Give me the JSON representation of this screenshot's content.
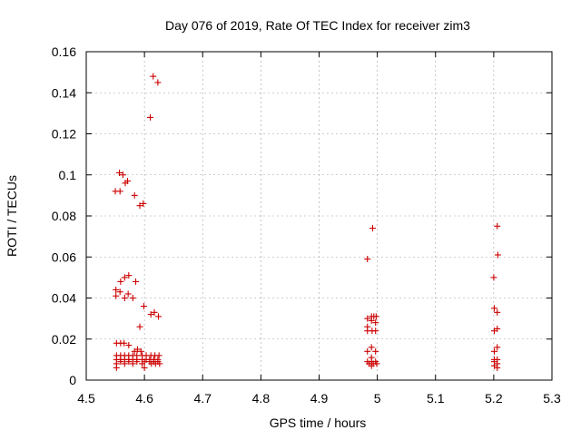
{
  "chart_data": {
    "type": "scatter",
    "title": "Day 076 of 2019, Rate Of TEC Index for receiver zim3",
    "xlabel": "GPS time / hours",
    "ylabel": "ROTI / TECUs",
    "xlim": [
      4.5,
      5.3
    ],
    "ylim": [
      0,
      0.16
    ],
    "xticks": [
      "4.5",
      "4.6",
      "4.7",
      "4.8",
      "4.9",
      "5",
      "5.1",
      "5.2",
      "5.3"
    ],
    "yticks": [
      "0",
      "0.02",
      "0.04",
      "0.06",
      "0.08",
      "0.1",
      "0.12",
      "0.14",
      "0.16"
    ],
    "grid": true,
    "marker": "+",
    "marker_color": "#cc0000",
    "series": [
      {
        "name": "ROTI",
        "points": [
          [
            4.615,
            0.148
          ],
          [
            4.623,
            0.145
          ],
          [
            4.61,
            0.128
          ],
          [
            4.557,
            0.101
          ],
          [
            4.563,
            0.1
          ],
          [
            4.571,
            0.097
          ],
          [
            4.567,
            0.096
          ],
          [
            4.55,
            0.092
          ],
          [
            4.558,
            0.092
          ],
          [
            4.583,
            0.09
          ],
          [
            4.598,
            0.086
          ],
          [
            4.592,
            0.085
          ],
          [
            4.573,
            0.051
          ],
          [
            4.566,
            0.05
          ],
          [
            4.559,
            0.048
          ],
          [
            4.585,
            0.048
          ],
          [
            4.551,
            0.044
          ],
          [
            4.558,
            0.043
          ],
          [
            4.572,
            0.042
          ],
          [
            4.551,
            0.041
          ],
          [
            4.566,
            0.04
          ],
          [
            4.58,
            0.04
          ],
          [
            4.599,
            0.036
          ],
          [
            4.617,
            0.033
          ],
          [
            4.611,
            0.032
          ],
          [
            4.624,
            0.031
          ],
          [
            4.592,
            0.026
          ],
          [
            4.552,
            0.018
          ],
          [
            4.559,
            0.018
          ],
          [
            4.565,
            0.018
          ],
          [
            4.573,
            0.017
          ],
          [
            4.588,
            0.015
          ],
          [
            4.583,
            0.014
          ],
          [
            4.594,
            0.014
          ],
          [
            4.552,
            0.012
          ],
          [
            4.559,
            0.012
          ],
          [
            4.566,
            0.012
          ],
          [
            4.573,
            0.012
          ],
          [
            4.58,
            0.012
          ],
          [
            4.587,
            0.012
          ],
          [
            4.596,
            0.012
          ],
          [
            4.603,
            0.012
          ],
          [
            4.611,
            0.012
          ],
          [
            4.618,
            0.012
          ],
          [
            4.625,
            0.012
          ],
          [
            4.552,
            0.01
          ],
          [
            4.559,
            0.01
          ],
          [
            4.566,
            0.01
          ],
          [
            4.573,
            0.01
          ],
          [
            4.58,
            0.01
          ],
          [
            4.587,
            0.01
          ],
          [
            4.596,
            0.01
          ],
          [
            4.603,
            0.01
          ],
          [
            4.609,
            0.01
          ],
          [
            4.616,
            0.01
          ],
          [
            4.623,
            0.01
          ],
          [
            4.559,
            0.009
          ],
          [
            4.573,
            0.009
          ],
          [
            4.587,
            0.009
          ],
          [
            4.6,
            0.009
          ],
          [
            4.609,
            0.009
          ],
          [
            4.616,
            0.009
          ],
          [
            4.623,
            0.009
          ],
          [
            4.552,
            0.008
          ],
          [
            4.566,
            0.008
          ],
          [
            4.58,
            0.008
          ],
          [
            4.596,
            0.008
          ],
          [
            4.612,
            0.008
          ],
          [
            4.619,
            0.008
          ],
          [
            4.626,
            0.008
          ],
          [
            4.552,
            0.006
          ],
          [
            4.6,
            0.006
          ],
          [
            4.992,
            0.074
          ],
          [
            4.983,
            0.059
          ],
          [
            4.994,
            0.031
          ],
          [
            4.99,
            0.031
          ],
          [
            4.998,
            0.031
          ],
          [
            4.983,
            0.03
          ],
          [
            4.99,
            0.029
          ],
          [
            4.997,
            0.028
          ],
          [
            4.983,
            0.026
          ],
          [
            4.983,
            0.024
          ],
          [
            4.991,
            0.024
          ],
          [
            4.997,
            0.024
          ],
          [
            4.99,
            0.016
          ],
          [
            4.983,
            0.014
          ],
          [
            4.997,
            0.014
          ],
          [
            4.99,
            0.011
          ],
          [
            4.983,
            0.009
          ],
          [
            4.997,
            0.009
          ],
          [
            4.99,
            0.009
          ],
          [
            4.986,
            0.008
          ],
          [
            4.993,
            0.008
          ],
          [
            4.999,
            0.008
          ],
          [
            4.99,
            0.007
          ],
          [
            5.206,
            0.075
          ],
          [
            5.207,
            0.061
          ],
          [
            5.2,
            0.05
          ],
          [
            5.201,
            0.035
          ],
          [
            5.206,
            0.033
          ],
          [
            5.206,
            0.025
          ],
          [
            5.201,
            0.024
          ],
          [
            5.206,
            0.016
          ],
          [
            5.201,
            0.014
          ],
          [
            5.201,
            0.01
          ],
          [
            5.206,
            0.01
          ],
          [
            5.201,
            0.009
          ],
          [
            5.206,
            0.008
          ],
          [
            5.201,
            0.007
          ],
          [
            5.206,
            0.006
          ]
        ]
      }
    ]
  }
}
